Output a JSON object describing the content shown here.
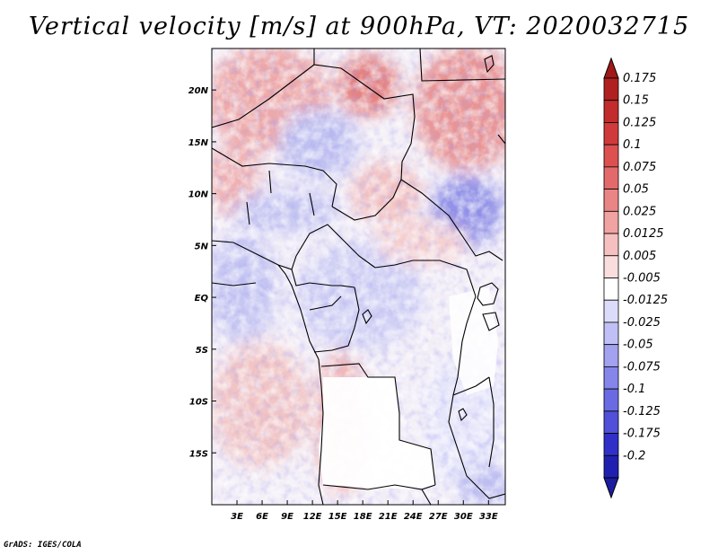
{
  "title": "Vertical velocity [m/s] at 900hPa, VT: 2020032715",
  "footer": "GrADS: IGES/COLA",
  "map": {
    "variable": "Vertical velocity",
    "units": "m/s",
    "level": "900hPa",
    "valid_time": "2020032715",
    "lon_range": [
      0,
      35
    ],
    "lat_range": [
      -20,
      24
    ],
    "lon_ticks": [
      {
        "value": 3,
        "label": "3E"
      },
      {
        "value": 6,
        "label": "6E"
      },
      {
        "value": 9,
        "label": "9E"
      },
      {
        "value": 12,
        "label": "12E"
      },
      {
        "value": 15,
        "label": "15E"
      },
      {
        "value": 18,
        "label": "18E"
      },
      {
        "value": 21,
        "label": "21E"
      },
      {
        "value": 24,
        "label": "24E"
      },
      {
        "value": 27,
        "label": "27E"
      },
      {
        "value": 30,
        "label": "30E"
      },
      {
        "value": 33,
        "label": "33E"
      }
    ],
    "lat_ticks": [
      {
        "value": 20,
        "label": "20N"
      },
      {
        "value": 15,
        "label": "15N"
      },
      {
        "value": 10,
        "label": "10N"
      },
      {
        "value": 5,
        "label": "5N"
      },
      {
        "value": 0,
        "label": "EQ"
      },
      {
        "value": -5,
        "label": "5S"
      },
      {
        "value": -10,
        "label": "10S"
      },
      {
        "value": -15,
        "label": "15S"
      }
    ]
  },
  "colorbar": {
    "levels": [
      {
        "label": "0.175",
        "color": "#b02020"
      },
      {
        "label": "0.15",
        "color": "#c22c2c"
      },
      {
        "label": "0.125",
        "color": "#d03a3a"
      },
      {
        "label": "0.1",
        "color": "#dc5050"
      },
      {
        "label": "0.075",
        "color": "#e36a6a"
      },
      {
        "label": "0.05",
        "color": "#ea8585"
      },
      {
        "label": "0.025",
        "color": "#f1a2a2"
      },
      {
        "label": "0.0125",
        "color": "#f6c0c0"
      },
      {
        "label": "0.005",
        "color": "#fadddd"
      },
      {
        "label": "-0.005",
        "color": "#ffffff"
      },
      {
        "label": "-0.0125",
        "color": "#dcdcfa"
      },
      {
        "label": "-0.025",
        "color": "#c0c0f6"
      },
      {
        "label": "-0.05",
        "color": "#a2a2f0"
      },
      {
        "label": "-0.075",
        "color": "#8585ea"
      },
      {
        "label": "-0.1",
        "color": "#6a6ae2"
      },
      {
        "label": "-0.125",
        "color": "#5050d8"
      },
      {
        "label": "-0.175",
        "color": "#3030c8"
      },
      {
        "label": "-0.2",
        "color": "#2020b0"
      }
    ],
    "top_arrow_color": "#a01818",
    "bottom_arrow_color": "#1c1ca0"
  }
}
